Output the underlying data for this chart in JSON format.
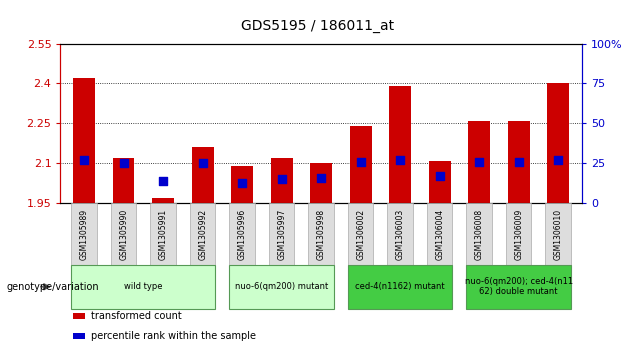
{
  "title": "GDS5195 / 186011_at",
  "samples": [
    "GSM1305989",
    "GSM1305990",
    "GSM1305991",
    "GSM1305992",
    "GSM1305996",
    "GSM1305997",
    "GSM1305998",
    "GSM1306002",
    "GSM1306003",
    "GSM1306004",
    "GSM1306008",
    "GSM1306009",
    "GSM1306010"
  ],
  "transformed_count": [
    2.42,
    2.12,
    1.97,
    2.16,
    2.09,
    2.12,
    2.1,
    2.24,
    2.39,
    2.11,
    2.26,
    2.26,
    2.4
  ],
  "percentile_rank": [
    27,
    25,
    14,
    25,
    13,
    15,
    16,
    26,
    27,
    17,
    26,
    26,
    27
  ],
  "ylim_left": [
    1.95,
    2.55
  ],
  "ylim_right": [
    0,
    100
  ],
  "yticks_left": [
    1.95,
    2.1,
    2.25,
    2.4,
    2.55
  ],
  "yticks_right": [
    0,
    25,
    50,
    75,
    100
  ],
  "bar_color": "#cc0000",
  "dot_color": "#0000cc",
  "grid_color": "#000000",
  "background_color": "#ffffff",
  "group_starts": [
    0,
    4,
    7,
    10
  ],
  "group_ends": [
    4,
    7,
    10,
    13
  ],
  "group_colors": [
    "#ccffcc",
    "#ccffcc",
    "#44cc44",
    "#44cc44"
  ],
  "group_labels": [
    "wild type",
    "nuo-6(qm200) mutant",
    "ced-4(n1162) mutant",
    "nuo-6(qm200); ced-4(n11\n62) double mutant"
  ],
  "group_border": "#559955",
  "sample_box_color": "#dddddd",
  "sample_box_border": "#aaaaaa",
  "bar_width": 0.55,
  "dot_size": 35,
  "base_value": 1.95,
  "genotype_label": "genotype/variation",
  "legend_label_bar": "transformed count",
  "legend_label_dot": "percentile rank within the sample",
  "grid_lines": [
    2.1,
    2.25,
    2.4
  ]
}
